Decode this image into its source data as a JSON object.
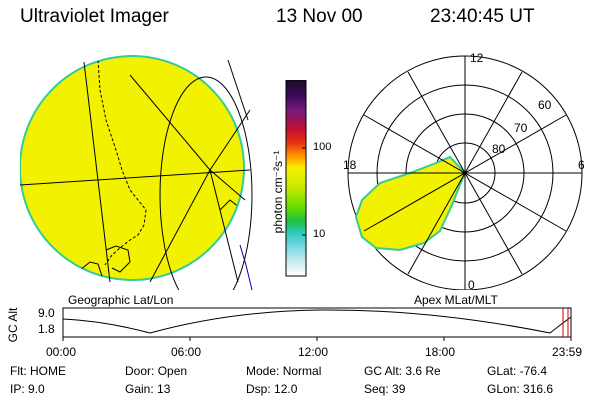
{
  "header": {
    "title": "Ultraviolet Imager",
    "date": "13 Nov 00",
    "time": "23:40:45 UT"
  },
  "colors": {
    "aurora_fill": "#f2f200",
    "aurora_edge": "#33cc99",
    "grid_line": "#000000",
    "timeline_marker": "#cc0000"
  },
  "geographic_panel": {
    "label": "Geographic Lat/Lon"
  },
  "polar_panel": {
    "label": "Apex MLat/MLT",
    "mlt_labels": {
      "top": "12",
      "left": "18",
      "right": "6",
      "bottom": "0"
    },
    "mlat_labels": [
      "60",
      "70",
      "80"
    ]
  },
  "colorbar": {
    "unit_label": "photon cm⁻²s⁻¹",
    "ticks": [
      "100",
      "10"
    ]
  },
  "timeline": {
    "axis_label": "GC Alt",
    "y_ticks": [
      "9.0",
      "1.8"
    ],
    "x_ticks": [
      "00:00",
      "06:00",
      "12:00",
      "18:00",
      "23:59"
    ]
  },
  "info": {
    "row1": [
      {
        "label": "Flt:",
        "value": "HOME"
      },
      {
        "label": "Door:",
        "value": "Open"
      },
      {
        "label": "Mode:",
        "value": "Normal"
      },
      {
        "label": "GC Alt:",
        "value": "3.6 Re"
      },
      {
        "label": "GLat:",
        "value": "-76.4"
      }
    ],
    "row2": [
      {
        "label": "IP:",
        "value": "9.0"
      },
      {
        "label": "Gain:",
        "value": "13"
      },
      {
        "label": "Dsp:",
        "value": "12.0"
      },
      {
        "label": "Seq:",
        "value": "39"
      },
      {
        "label": "GLon:",
        "value": "316.6"
      }
    ]
  }
}
